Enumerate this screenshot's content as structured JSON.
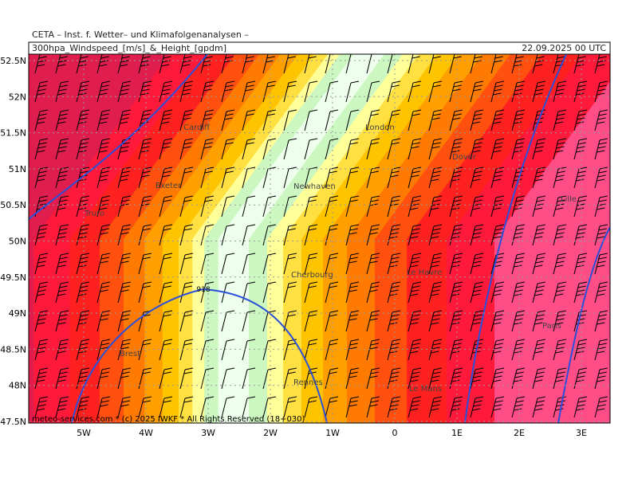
{
  "header": {
    "institute": "CETA – Inst. f. Wetter– und Klimafolgenanalysen –",
    "product": "300hpa_Windspeed_[m/s]_&_Height_[gpdm]",
    "valid_time": "22.09.2025 00 UTC"
  },
  "lat_labels": [
    "52.5N",
    "52N",
    "51.5N",
    "51N",
    "50.5N",
    "50N",
    "49.5N",
    "49N",
    "48.5N",
    "48N",
    "47.5N"
  ],
  "lon_labels": [
    "5W",
    "4W",
    "3W",
    "2W",
    "1W",
    "0",
    "1E",
    "2E",
    "3E"
  ],
  "places": [
    "Cardiff",
    "Exeter",
    "Truro",
    "London",
    "Dover",
    "Newhaven",
    "Lille",
    "Cherbourg",
    "Le Havre",
    "Paris",
    "Brest",
    "Rennes",
    "Le Mans"
  ],
  "contour_label": "918",
  "footer": "meteo-services.com * (c) 2025 IWKF * All Rights Reserved (18+030)"
}
